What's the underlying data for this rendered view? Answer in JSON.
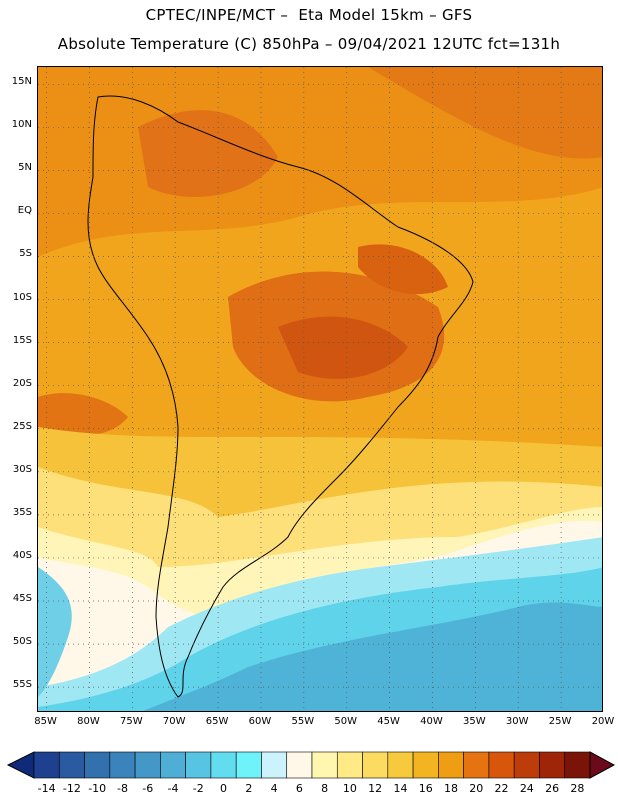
{
  "header": {
    "line1": "CPTEC/INPE/MCT –  Eta Model 15km – GFS",
    "line2": "Absolute Temperature (C) 850hPa – 09/04/2021 12UTC fct=131h"
  },
  "map": {
    "lat_labels": [
      "15N",
      "10N",
      "5N",
      "EQ",
      "5S",
      "10S",
      "15S",
      "20S",
      "25S",
      "30S",
      "35S",
      "40S",
      "45S",
      "50S",
      "55S"
    ],
    "lat_values": [
      15,
      10,
      5,
      0,
      -5,
      -10,
      -15,
      -20,
      -25,
      -30,
      -35,
      -40,
      -45,
      -50,
      -55
    ],
    "lon_labels": [
      "85W",
      "80W",
      "75W",
      "70W",
      "65W",
      "60W",
      "55W",
      "50W",
      "45W",
      "40W",
      "35W",
      "30W",
      "25W",
      "20W"
    ],
    "lon_values": [
      -85,
      -80,
      -75,
      -70,
      -65,
      -60,
      -55,
      -50,
      -45,
      -40,
      -35,
      -30,
      -25,
      -20
    ],
    "lat_range": [
      -58,
      17
    ],
    "lon_range": [
      -86,
      -20
    ],
    "grid": "dotted"
  },
  "legend": {
    "labels": [
      "-14",
      "-12",
      "-10",
      "-8",
      "-6",
      "-4",
      "-2",
      "0",
      "2",
      "4",
      "6",
      "8",
      "10",
      "12",
      "14",
      "16",
      "18",
      "20",
      "22",
      "24",
      "26",
      "28"
    ],
    "colors": [
      "#1f3f8f",
      "#2a5aa0",
      "#3370ae",
      "#3b84bb",
      "#4498c8",
      "#4eaed6",
      "#58c4e4",
      "#62dcef",
      "#6ef3fb",
      "#ccf3fb",
      "#fff8e8",
      "#fff7b0",
      "#ffea85",
      "#fbdc60",
      "#f7c93c",
      "#f3b421",
      "#ef9d12",
      "#e5730f",
      "#d8560c",
      "#bc3d0a",
      "#9e2508",
      "#7a1408"
    ]
  }
}
